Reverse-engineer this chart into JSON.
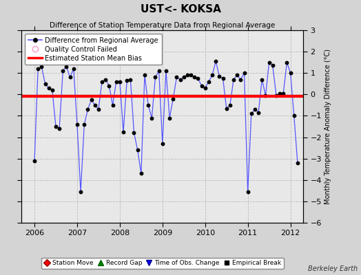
{
  "title": "UST<- KOKSA",
  "subtitle": "Difference of Station Temperature Data from Regional Average",
  "ylabel_right": "Monthly Temperature Anomaly Difference (°C)",
  "bias": -0.08,
  "xlim": [
    2005.7,
    2012.3
  ],
  "ylim": [
    -6,
    3
  ],
  "yticks": [
    -6,
    -5,
    -4,
    -3,
    -2,
    -1,
    0,
    1,
    2,
    3
  ],
  "xticks": [
    2006,
    2007,
    2008,
    2009,
    2010,
    2011,
    2012
  ],
  "fig_facecolor": "#d4d4d4",
  "plot_facecolor": "#e8e8e8",
  "line_color": "#5555ff",
  "bias_color": "#ff0000",
  "watermark": "Berkeley Earth",
  "data": [
    [
      2006.0,
      -3.1
    ],
    [
      2006.083,
      1.2
    ],
    [
      2006.167,
      1.3
    ],
    [
      2006.25,
      0.5
    ],
    [
      2006.333,
      0.3
    ],
    [
      2006.417,
      0.2
    ],
    [
      2006.5,
      -1.5
    ],
    [
      2006.583,
      -1.6
    ],
    [
      2006.667,
      1.1
    ],
    [
      2006.75,
      1.3
    ],
    [
      2006.833,
      0.8
    ],
    [
      2006.917,
      1.2
    ],
    [
      2007.0,
      -1.4
    ],
    [
      2007.083,
      -4.55
    ],
    [
      2007.167,
      -1.4
    ],
    [
      2007.25,
      -0.7
    ],
    [
      2007.333,
      -0.25
    ],
    [
      2007.417,
      -0.5
    ],
    [
      2007.5,
      -0.7
    ],
    [
      2007.583,
      0.6
    ],
    [
      2007.667,
      0.7
    ],
    [
      2007.75,
      0.4
    ],
    [
      2007.833,
      -0.5
    ],
    [
      2007.917,
      0.6
    ],
    [
      2008.0,
      0.6
    ],
    [
      2008.083,
      -1.75
    ],
    [
      2008.167,
      0.65
    ],
    [
      2008.25,
      0.7
    ],
    [
      2008.333,
      -1.8
    ],
    [
      2008.417,
      -2.6
    ],
    [
      2008.5,
      -3.7
    ],
    [
      2008.583,
      0.9
    ],
    [
      2008.667,
      -0.5
    ],
    [
      2008.75,
      -1.1
    ],
    [
      2008.833,
      0.8
    ],
    [
      2008.917,
      1.1
    ],
    [
      2009.0,
      -2.3
    ],
    [
      2009.083,
      1.1
    ],
    [
      2009.167,
      -1.1
    ],
    [
      2009.25,
      -0.2
    ],
    [
      2009.333,
      0.8
    ],
    [
      2009.417,
      0.7
    ],
    [
      2009.5,
      0.8
    ],
    [
      2009.583,
      0.9
    ],
    [
      2009.667,
      0.9
    ],
    [
      2009.75,
      0.8
    ],
    [
      2009.833,
      0.75
    ],
    [
      2009.917,
      0.4
    ],
    [
      2010.0,
      0.3
    ],
    [
      2010.083,
      0.6
    ],
    [
      2010.167,
      0.9
    ],
    [
      2010.25,
      1.55
    ],
    [
      2010.333,
      0.85
    ],
    [
      2010.417,
      0.75
    ],
    [
      2010.5,
      -0.65
    ],
    [
      2010.583,
      -0.5
    ],
    [
      2010.667,
      0.7
    ],
    [
      2010.75,
      0.9
    ],
    [
      2010.833,
      0.7
    ],
    [
      2010.917,
      1.0
    ],
    [
      2011.0,
      -4.55
    ],
    [
      2011.083,
      -0.9
    ],
    [
      2011.167,
      -0.7
    ],
    [
      2011.25,
      -0.85
    ],
    [
      2011.333,
      0.7
    ],
    [
      2011.417,
      -0.05
    ],
    [
      2011.5,
      1.5
    ],
    [
      2011.583,
      1.35
    ],
    [
      2011.667,
      -0.05
    ],
    [
      2011.75,
      0.05
    ],
    [
      2011.833,
      0.05
    ],
    [
      2011.917,
      1.5
    ],
    [
      2012.0,
      1.0
    ],
    [
      2012.083,
      -1.0
    ],
    [
      2012.167,
      -3.2
    ]
  ]
}
